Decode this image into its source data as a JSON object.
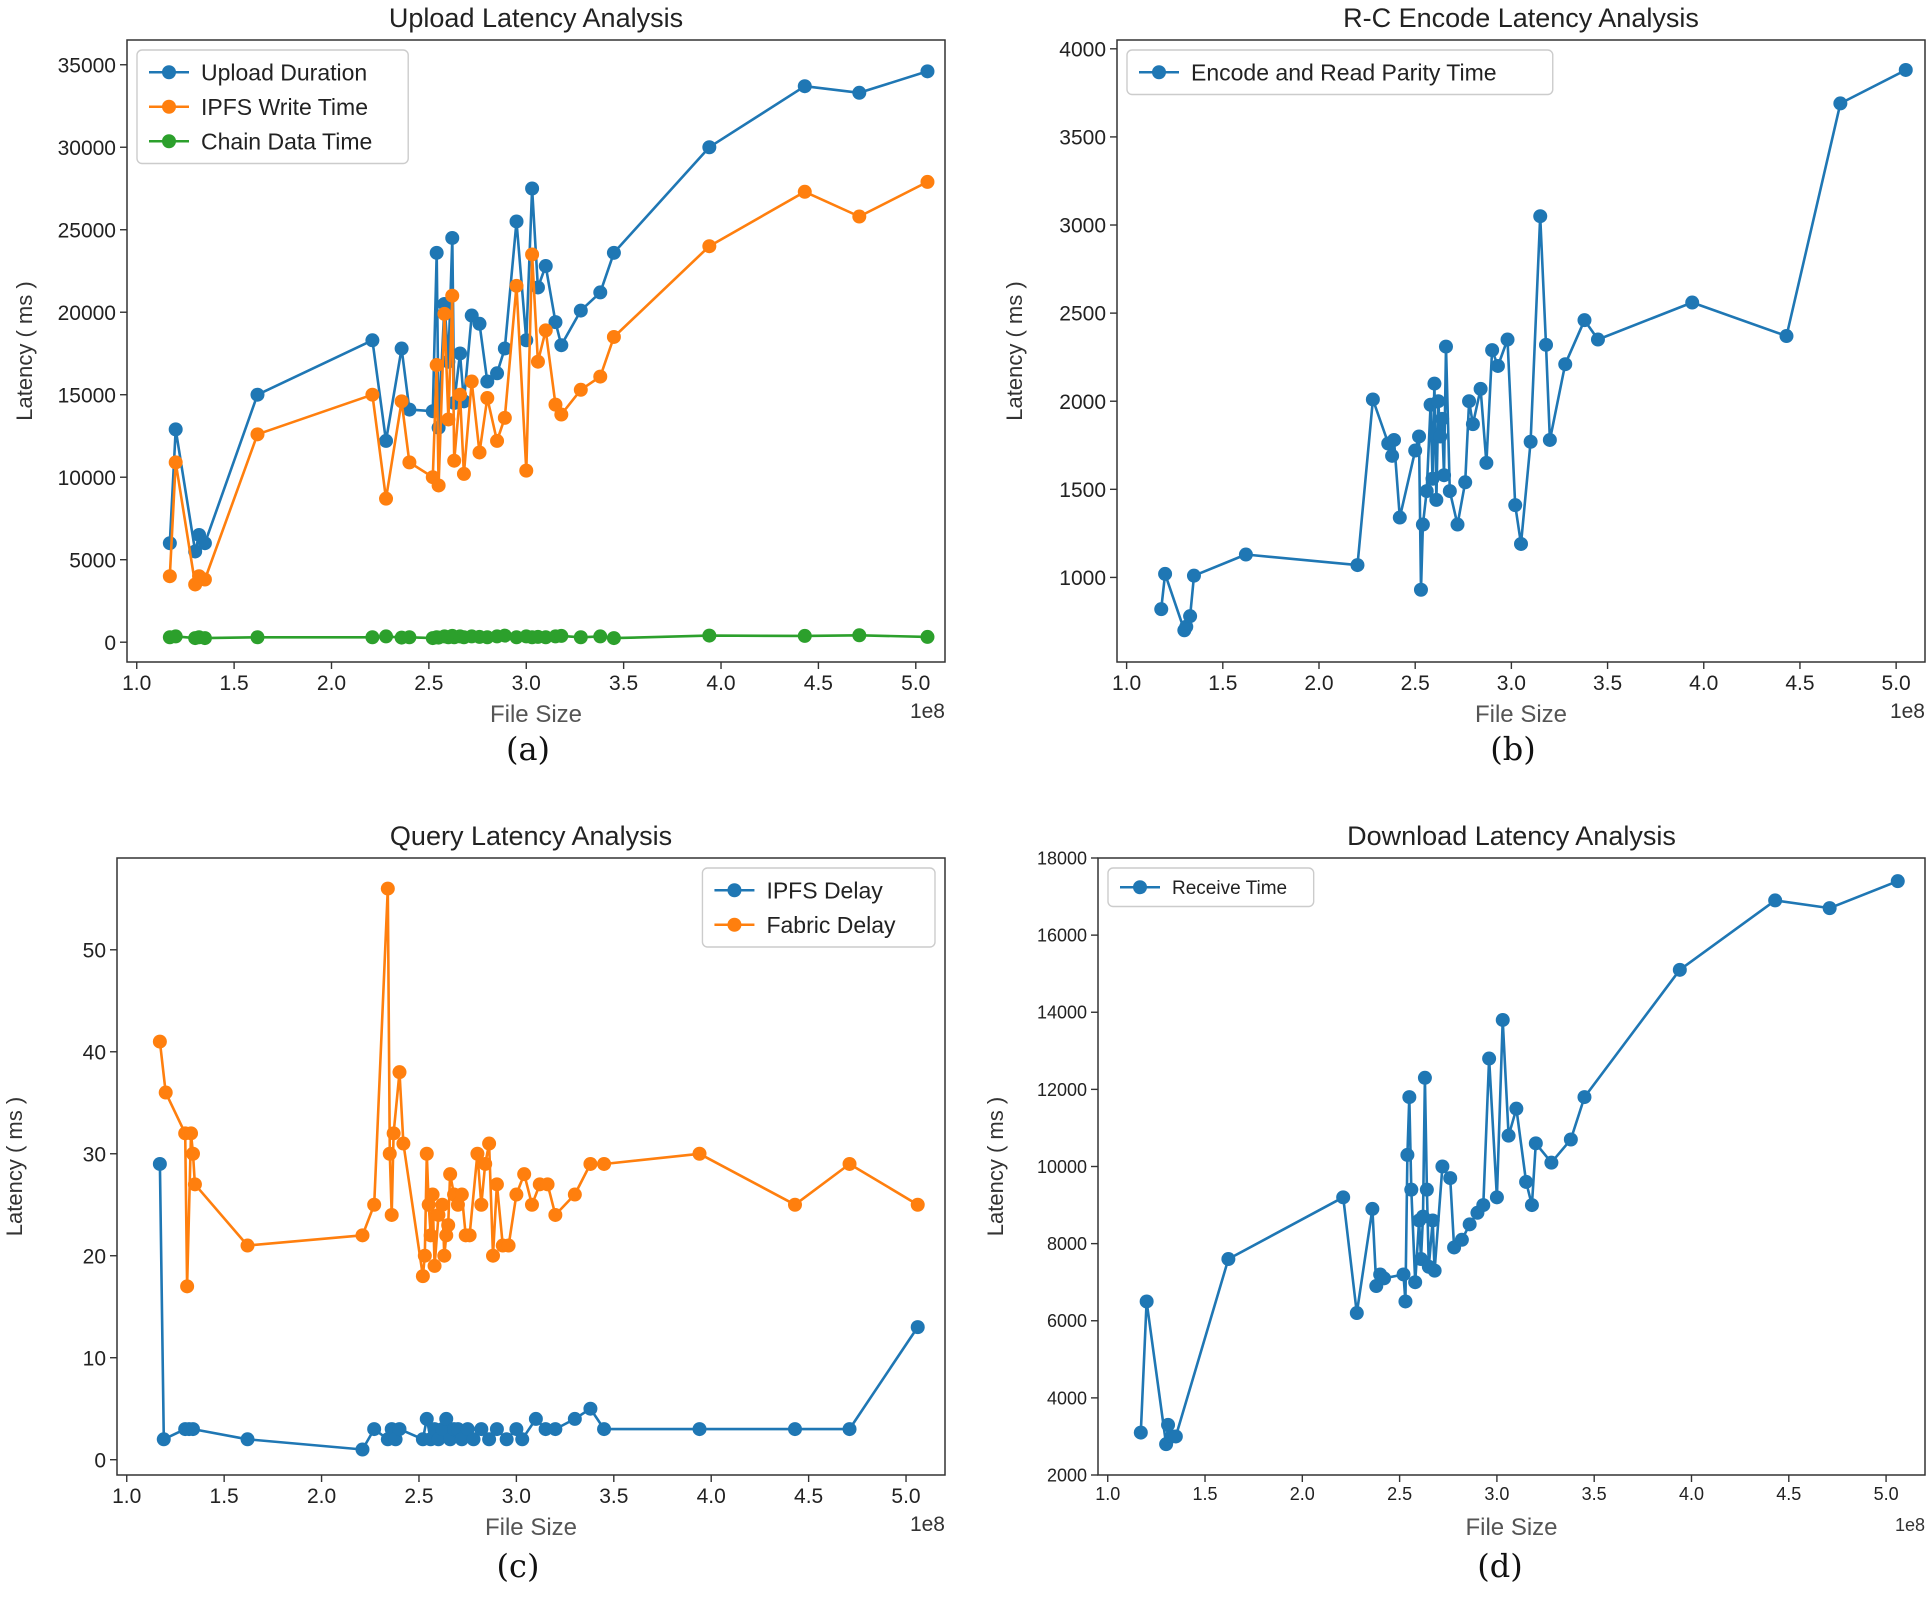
{
  "captions": [
    "(a)",
    "(b)",
    "(c)",
    "(d)"
  ],
  "colors": {
    "blue": "#1f77b4",
    "orange": "#ff7f0e",
    "green": "#2ca02c"
  },
  "chart_data": [
    {
      "type": "line",
      "title": "Upload Latency Analysis",
      "xlabel": "File Size",
      "ylabel": "Latency ( ms )",
      "x_offset_label": "1e8",
      "xlim": [
        0.95,
        5.15
      ],
      "ylim": [
        -1200,
        36500
      ],
      "xticks": [
        1.0,
        1.5,
        2.0,
        2.5,
        3.0,
        3.5,
        4.0,
        4.5,
        5.0
      ],
      "xtick_labels": [
        "1.0",
        "1.5",
        "2.0",
        "2.5",
        "3.0",
        "3.5",
        "4.0",
        "4.5",
        "5.0"
      ],
      "yticks": [
        0,
        5000,
        10000,
        15000,
        20000,
        25000,
        30000,
        35000
      ],
      "ytick_labels": [
        "0",
        "5000",
        "10000",
        "15000",
        "20000",
        "25000",
        "30000",
        "35000"
      ],
      "legend": "top-left",
      "series": [
        {
          "name": "Upload Duration",
          "color": "#1f77b4",
          "x": [
            1.17,
            1.2,
            1.3,
            1.32,
            1.35,
            1.62,
            2.21,
            2.28,
            2.36,
            2.4,
            2.52,
            2.54,
            2.55,
            2.58,
            2.6,
            2.62,
            2.63,
            2.66,
            2.68,
            2.72,
            2.76,
            2.8,
            2.85,
            2.89,
            2.95,
            3.0,
            3.03,
            3.06,
            3.1,
            3.15,
            3.18,
            3.28,
            3.38,
            3.45,
            3.94,
            4.43,
            4.71,
            5.06
          ],
          "y": [
            6000,
            12900,
            5500,
            6500,
            6000,
            15000,
            18300,
            12200,
            17800,
            14100,
            14000,
            23600,
            13000,
            20500,
            17000,
            24500,
            14500,
            17500,
            14600,
            19800,
            19300,
            15800,
            16300,
            17800,
            25500,
            18300,
            27500,
            21500,
            22800,
            19400,
            18000,
            20100,
            21200,
            23600,
            30000,
            33700,
            33300,
            34600
          ]
        },
        {
          "name": "IPFS Write Time",
          "color": "#ff7f0e",
          "x": [
            1.17,
            1.2,
            1.3,
            1.32,
            1.35,
            1.62,
            2.21,
            2.28,
            2.36,
            2.4,
            2.52,
            2.54,
            2.55,
            2.58,
            2.6,
            2.62,
            2.63,
            2.66,
            2.68,
            2.72,
            2.76,
            2.8,
            2.85,
            2.89,
            2.95,
            3.0,
            3.03,
            3.06,
            3.1,
            3.15,
            3.18,
            3.28,
            3.38,
            3.45,
            3.94,
            4.43,
            4.71,
            5.06
          ],
          "y": [
            4000,
            10900,
            3500,
            4000,
            3800,
            12600,
            15000,
            8700,
            14600,
            10900,
            10000,
            16800,
            9500,
            19900,
            13500,
            21000,
            11000,
            15000,
            10200,
            15800,
            11500,
            14800,
            12200,
            13600,
            21600,
            10400,
            23500,
            17000,
            18900,
            14400,
            13800,
            15300,
            16100,
            18500,
            24000,
            27300,
            25800,
            27900
          ]
        },
        {
          "name": "Chain Data Time",
          "color": "#2ca02c",
          "x": [
            1.17,
            1.2,
            1.3,
            1.32,
            1.35,
            1.62,
            2.21,
            2.28,
            2.36,
            2.4,
            2.52,
            2.54,
            2.55,
            2.58,
            2.6,
            2.62,
            2.63,
            2.66,
            2.68,
            2.72,
            2.76,
            2.8,
            2.85,
            2.89,
            2.95,
            3.0,
            3.03,
            3.06,
            3.1,
            3.15,
            3.18,
            3.28,
            3.38,
            3.45,
            3.94,
            4.43,
            4.71,
            5.06
          ],
          "y": [
            300,
            350,
            250,
            300,
            250,
            300,
            300,
            350,
            280,
            300,
            250,
            300,
            280,
            350,
            300,
            380,
            300,
            350,
            300,
            350,
            320,
            300,
            350,
            400,
            300,
            350,
            300,
            320,
            300,
            350,
            380,
            300,
            350,
            250,
            400,
            380,
            420,
            320
          ]
        }
      ]
    },
    {
      "type": "line",
      "title": "R-C Encode Latency Analysis",
      "xlabel": "File Size",
      "ylabel": "Latency ( ms )",
      "x_offset_label": "1e8",
      "xlim": [
        0.95,
        5.15
      ],
      "ylim": [
        520,
        4050
      ],
      "xticks": [
        1.0,
        1.5,
        2.0,
        2.5,
        3.0,
        3.5,
        4.0,
        4.5,
        5.0
      ],
      "xtick_labels": [
        "1.0",
        "1.5",
        "2.0",
        "2.5",
        "3.0",
        "3.5",
        "4.0",
        "4.5",
        "5.0"
      ],
      "yticks": [
        1000,
        1500,
        2000,
        2500,
        3000,
        3500,
        4000
      ],
      "ytick_labels": [
        "1000",
        "1500",
        "2000",
        "2500",
        "3000",
        "3500",
        "4000"
      ],
      "legend": "top-left",
      "series": [
        {
          "name": "Encode and Read Parity Time",
          "color": "#1f77b4",
          "x": [
            1.18,
            1.2,
            1.3,
            1.31,
            1.33,
            1.35,
            1.62,
            2.2,
            2.28,
            2.36,
            2.38,
            2.39,
            2.42,
            2.5,
            2.52,
            2.53,
            2.54,
            2.56,
            2.58,
            2.59,
            2.6,
            2.61,
            2.62,
            2.63,
            2.64,
            2.65,
            2.66,
            2.68,
            2.72,
            2.76,
            2.78,
            2.8,
            2.84,
            2.87,
            2.9,
            2.93,
            2.98,
            3.02,
            3.05,
            3.1,
            3.15,
            3.18,
            3.2,
            3.28,
            3.38,
            3.45,
            3.94,
            4.43,
            4.71,
            5.05
          ],
          "y": [
            820,
            1020,
            700,
            720,
            780,
            1010,
            1130,
            1070,
            2010,
            1760,
            1690,
            1780,
            1340,
            1720,
            1800,
            930,
            1300,
            1490,
            1980,
            1560,
            2100,
            1440,
            2000,
            1800,
            1900,
            1580,
            2310,
            1490,
            1300,
            1540,
            2000,
            1870,
            2070,
            1650,
            2290,
            2200,
            2350,
            1410,
            1190,
            1770,
            3050,
            2320,
            1780,
            2210,
            2460,
            2350,
            2560,
            2370,
            3690,
            3880
          ]
        }
      ]
    },
    {
      "type": "line",
      "title": "Query Latency Analysis",
      "xlabel": "File Size",
      "ylabel": "Latency ( ms )",
      "x_offset_label": "1e8",
      "xlim": [
        0.95,
        5.2
      ],
      "ylim": [
        -1.5,
        59
      ],
      "xticks": [
        1.0,
        1.5,
        2.0,
        2.5,
        3.0,
        3.5,
        4.0,
        4.5,
        5.0
      ],
      "xtick_labels": [
        "1.0",
        "1.5",
        "2.0",
        "2.5",
        "3.0",
        "3.5",
        "4.0",
        "4.5",
        "5.0"
      ],
      "yticks": [
        0,
        10,
        20,
        30,
        40,
        50
      ],
      "ytick_labels": [
        "0",
        "10",
        "20",
        "30",
        "40",
        "50"
      ],
      "legend": "top-right",
      "series": [
        {
          "name": "IPFS Delay",
          "color": "#1f77b4",
          "x": [
            1.17,
            1.19,
            1.3,
            1.32,
            1.34,
            1.62,
            2.21,
            2.27,
            2.34,
            2.36,
            2.38,
            2.4,
            2.52,
            2.54,
            2.56,
            2.58,
            2.6,
            2.62,
            2.64,
            2.66,
            2.68,
            2.7,
            2.72,
            2.75,
            2.78,
            2.82,
            2.86,
            2.9,
            2.95,
            3.0,
            3.03,
            3.1,
            3.15,
            3.2,
            3.3,
            3.38,
            3.45,
            3.94,
            4.43,
            4.71,
            5.06
          ],
          "y": [
            29,
            2,
            3,
            3,
            3,
            2,
            1,
            3,
            2,
            3,
            2,
            3,
            2,
            4,
            2,
            3,
            2,
            3,
            4,
            2,
            3,
            3,
            2,
            3,
            2,
            3,
            2,
            3,
            2,
            3,
            2,
            4,
            3,
            3,
            4,
            5,
            3,
            3,
            3,
            3,
            13
          ]
        },
        {
          "name": "Fabric Delay",
          "color": "#ff7f0e",
          "x": [
            1.17,
            1.2,
            1.3,
            1.31,
            1.33,
            1.34,
            1.35,
            1.62,
            2.21,
            2.27,
            2.34,
            2.35,
            2.36,
            2.37,
            2.4,
            2.42,
            2.52,
            2.53,
            2.54,
            2.55,
            2.56,
            2.57,
            2.58,
            2.6,
            2.62,
            2.63,
            2.64,
            2.65,
            2.66,
            2.68,
            2.7,
            2.72,
            2.74,
            2.76,
            2.8,
            2.82,
            2.84,
            2.86,
            2.88,
            2.9,
            2.93,
            2.96,
            3.0,
            3.04,
            3.08,
            3.12,
            3.16,
            3.2,
            3.3,
            3.38,
            3.45,
            3.94,
            4.43,
            4.71,
            5.06
          ],
          "y": [
            41,
            36,
            32,
            17,
            32,
            30,
            27,
            21,
            22,
            25,
            56,
            30,
            24,
            32,
            38,
            31,
            18,
            20,
            30,
            25,
            22,
            26,
            19,
            24,
            25,
            20,
            22,
            23,
            28,
            26,
            25,
            26,
            22,
            22,
            30,
            25,
            29,
            31,
            20,
            27,
            21,
            21,
            26,
            28,
            25,
            27,
            27,
            24,
            26,
            29,
            29,
            30,
            25,
            29,
            25
          ]
        }
      ]
    },
    {
      "type": "line",
      "title": "Download Latency Analysis",
      "xlabel": "File Size",
      "ylabel": "Latency ( ms )",
      "x_offset_label": "1e8",
      "xlim": [
        0.95,
        5.2
      ],
      "ylim": [
        2000,
        18000
      ],
      "xticks": [
        1.0,
        1.5,
        2.0,
        2.5,
        3.0,
        3.5,
        4.0,
        4.5,
        5.0
      ],
      "xtick_labels": [
        "1.0",
        "1.5",
        "2.0",
        "2.5",
        "3.0",
        "3.5",
        "4.0",
        "4.5",
        "5.0"
      ],
      "yticks": [
        2000,
        4000,
        6000,
        8000,
        10000,
        12000,
        14000,
        16000,
        18000
      ],
      "ytick_labels": [
        "2000",
        "4000",
        "6000",
        "8000",
        "10000",
        "12000",
        "14000",
        "16000",
        "18000"
      ],
      "legend": "top-left",
      "series": [
        {
          "name": "Receive Time",
          "color": "#1f77b4",
          "x": [
            1.17,
            1.2,
            1.3,
            1.31,
            1.33,
            1.35,
            1.62,
            2.21,
            2.28,
            2.36,
            2.38,
            2.4,
            2.42,
            2.52,
            2.53,
            2.54,
            2.55,
            2.56,
            2.58,
            2.6,
            2.61,
            2.62,
            2.63,
            2.64,
            2.65,
            2.67,
            2.68,
            2.72,
            2.76,
            2.78,
            2.82,
            2.86,
            2.9,
            2.93,
            2.96,
            3.0,
            3.03,
            3.06,
            3.1,
            3.15,
            3.18,
            3.2,
            3.28,
            3.38,
            3.45,
            3.94,
            4.43,
            4.71,
            5.06
          ],
          "y": [
            3100,
            6500,
            2800,
            3300,
            3000,
            3000,
            7600,
            9200,
            6200,
            8900,
            6900,
            7200,
            7100,
            7200,
            6500,
            10300,
            11800,
            9400,
            7000,
            8600,
            7600,
            8700,
            12300,
            9400,
            7400,
            8600,
            7300,
            10000,
            9700,
            7900,
            8100,
            8500,
            8800,
            9000,
            12800,
            9200,
            13800,
            10800,
            11500,
            9600,
            9000,
            10600,
            10100,
            10700,
            11800,
            15100,
            16900,
            16700,
            17400
          ]
        }
      ]
    }
  ]
}
